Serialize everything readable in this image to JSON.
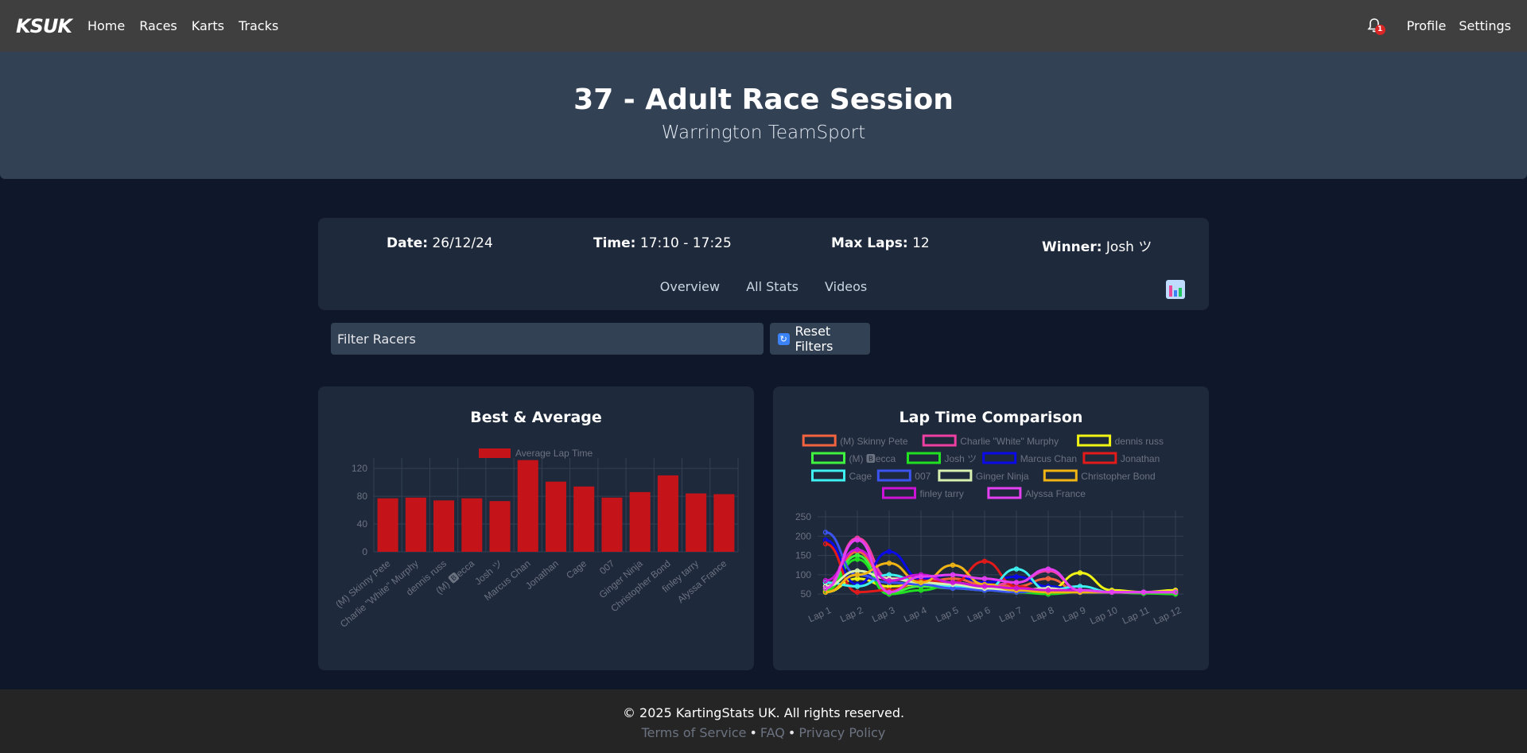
{
  "nav": {
    "brand": "KSUK",
    "links": [
      "Home",
      "Races",
      "Karts",
      "Tracks"
    ],
    "notification_count": "1",
    "profile": "Profile",
    "settings": "Settings"
  },
  "hero": {
    "title": "37 - Adult Race Session",
    "subtitle": "Warrington TeamSport"
  },
  "info": {
    "date_label": "Date:",
    "date_value": "26/12/24",
    "time_label": "Time:",
    "time_value": "17:10 - 17:25",
    "laps_label": "Max Laps:",
    "laps_value": "12",
    "winner_label": "Winner:",
    "winner_value": "Josh ツ",
    "tabs": [
      "Overview",
      "All Stats",
      "Videos"
    ]
  },
  "filter": {
    "placeholder": "Filter Racers",
    "reset_label": "Reset Filters"
  },
  "footer": {
    "copyright": "© 2025 KartingStats UK. All rights reserved.",
    "links": [
      "Terms of Service",
      "FAQ",
      "Privacy Policy"
    ],
    "separator": "•"
  },
  "colors": {
    "bar": "#c5131a",
    "card": "#1e293b",
    "grid": "#334155",
    "tick": "#6b7280"
  },
  "chart_data": [
    {
      "type": "bar",
      "title": "Best & Average",
      "legend": [
        "Average Lap Time"
      ],
      "categories": [
        "(M) Skinny Pete",
        "Charlie \"White\" Murphy",
        "dennis russ",
        "(M) 🅱ecca",
        "Josh ツ",
        "Marcus Chan",
        "Jonathan",
        "Cage",
        "007",
        "Ginger Ninja",
        "Christopher Bond",
        "finley tarry",
        "Alyssa France"
      ],
      "values": [
        77,
        78,
        74,
        77,
        73,
        132,
        101,
        94,
        78,
        86,
        110,
        84,
        83
      ],
      "yticks": [
        0,
        40,
        80,
        120
      ],
      "ylim": [
        0,
        135
      ],
      "legend_position": "top"
    },
    {
      "type": "line",
      "title": "Lap Time Comparison",
      "x": [
        "Lap 1",
        "Lap 2",
        "Lap 3",
        "Lap 4",
        "Lap 5",
        "Lap 6",
        "Lap 7",
        "Lap 8",
        "Lap 9",
        "Lap 10",
        "Lap 11",
        "Lap 12"
      ],
      "yticks": [
        50,
        100,
        150,
        200,
        250
      ],
      "ylim": [
        40,
        250
      ],
      "legend_position": "top",
      "series": [
        {
          "name": "(M) Skinny Pete",
          "color": "#f4633f",
          "values": [
            60,
            160,
            60,
            80,
            90,
            75,
            70,
            90,
            55,
            55,
            55,
            55
          ]
        },
        {
          "name": "Charlie \"White\" Murphy",
          "color": "#ee3fa2",
          "values": [
            70,
            195,
            90,
            95,
            80,
            70,
            80,
            110,
            60,
            55,
            55,
            58
          ]
        },
        {
          "name": "dennis russ",
          "color": "#f2f414",
          "values": [
            55,
            90,
            70,
            75,
            80,
            70,
            60,
            60,
            105,
            60,
            55,
            60
          ]
        },
        {
          "name": "(M) 🅱ecca",
          "color": "#3ef23e",
          "values": [
            65,
            150,
            55,
            70,
            65,
            60,
            55,
            55,
            60,
            55,
            52,
            52
          ]
        },
        {
          "name": "Josh ツ",
          "color": "#21e021",
          "values": [
            60,
            140,
            50,
            60,
            75,
            70,
            55,
            50,
            55,
            55,
            52,
            50
          ]
        },
        {
          "name": "Marcus Chan",
          "color": "#0a0ae8",
          "values": [
            190,
            75,
            160,
            90,
            100,
            80,
            95,
            70,
            60,
            55,
            55,
            55
          ]
        },
        {
          "name": "Jonathan",
          "color": "#e21a1a",
          "values": [
            180,
            55,
            60,
            85,
            80,
            135,
            70,
            55,
            55,
            55,
            55,
            55
          ]
        },
        {
          "name": "Cage",
          "color": "#3ef0f0",
          "values": [
            80,
            70,
            100,
            80,
            70,
            60,
            115,
            60,
            70,
            55,
            55,
            55
          ]
        },
        {
          "name": "007",
          "color": "#3b53f0",
          "values": [
            210,
            100,
            80,
            75,
            65,
            60,
            55,
            60,
            55,
            55,
            55,
            55
          ]
        },
        {
          "name": "Ginger Ninja",
          "color": "#d8f0b0",
          "values": [
            70,
            110,
            90,
            80,
            75,
            65,
            60,
            65,
            55,
            55,
            55,
            55
          ]
        },
        {
          "name": "Christopher Bond",
          "color": "#f0b414",
          "values": [
            55,
            100,
            130,
            80,
            125,
            75,
            60,
            55,
            55,
            55,
            55,
            55
          ]
        },
        {
          "name": "finley tarry",
          "color": "#cc14d6",
          "values": [
            85,
            165,
            85,
            100,
            80,
            70,
            65,
            60,
            60,
            55,
            55,
            55
          ]
        },
        {
          "name": "Alyssa France",
          "color": "#e43ff0",
          "values": [
            65,
            190,
            55,
            95,
            100,
            90,
            80,
            115,
            60,
            55,
            55,
            55
          ]
        }
      ]
    }
  ]
}
